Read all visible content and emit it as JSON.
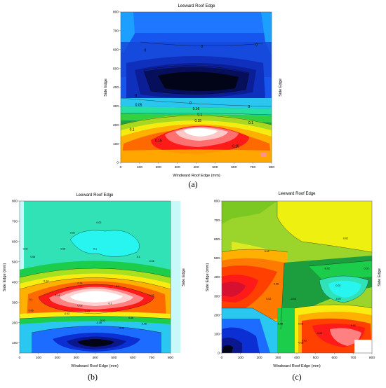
{
  "chart_data": [
    {
      "type": "heatmap",
      "panel_label": "(a)",
      "title": "Leeward Roof Edge",
      "xlabel": "Windward Roof Edge (mm)",
      "ylabel": "Side Edge",
      "right_label": "Side Edge",
      "xlim": [
        0,
        800
      ],
      "ylim": [
        0,
        800
      ],
      "xticks": [
        "0",
        "100",
        "200",
        "300",
        "400",
        "500",
        "600",
        "700",
        "800"
      ],
      "yticks": [
        "0",
        "100",
        "200",
        "300",
        "400",
        "500",
        "600",
        "700",
        "800"
      ],
      "contour_labels": [
        "0",
        "0",
        "0",
        "0",
        "0",
        "0.05",
        "0.05",
        "0",
        "0.1",
        "0.1",
        "0.15",
        "0.1",
        "0.15",
        "0.15"
      ]
    },
    {
      "type": "heatmap",
      "panel_label": "(b)",
      "title": "Leeward Roof Edge",
      "xlabel": "Windward Roof Edge (mm)",
      "ylabel": "Side Edge (mm)",
      "right_label": "Side Edge",
      "xlim": [
        0,
        800
      ],
      "ylim": [
        50,
        800
      ],
      "xticks": [
        "0",
        "100",
        "200",
        "300",
        "400",
        "500",
        "600",
        "700",
        "800"
      ],
      "yticks": [
        "100",
        "200",
        "300",
        "400",
        "500",
        "600",
        "700",
        "800"
      ],
      "contour_labels": [
        "0.02",
        "0.02",
        "0.02",
        "0.06",
        "0.06",
        "0.1",
        "0.1",
        "0.06",
        "0.14",
        "0.14",
        "0.1",
        "0.02",
        "0.14",
        "0.1",
        "0.1",
        "0.02",
        "0.06",
        "-0.02",
        "0.02",
        "0.06",
        "0.02",
        "-0.06",
        "-0.06",
        "0.06"
      ]
    },
    {
      "type": "heatmap",
      "panel_label": "(c)",
      "title": "Leeward Roof Edge",
      "xlabel": "Windward Roof Edge (mm)",
      "ylabel": "Side Edge (mm)",
      "right_label": "Side Edge",
      "xlim": [
        0,
        800
      ],
      "ylim": [
        0,
        800
      ],
      "xticks": [
        "0",
        "100",
        "200",
        "300",
        "400",
        "500",
        "600",
        "700",
        "800"
      ],
      "yticks": [
        "0",
        "100",
        "200",
        "300",
        "400",
        "500",
        "600",
        "700",
        "800"
      ],
      "contour_labels": [
        "0.02",
        "0.02",
        "0.02",
        "-0.02",
        "-0.06",
        "0.06",
        "0.02",
        "0.02",
        "-0.02",
        "0.06",
        "-0.08",
        "-0.02",
        "0.02",
        "0.02",
        "-0.08"
      ]
    }
  ]
}
